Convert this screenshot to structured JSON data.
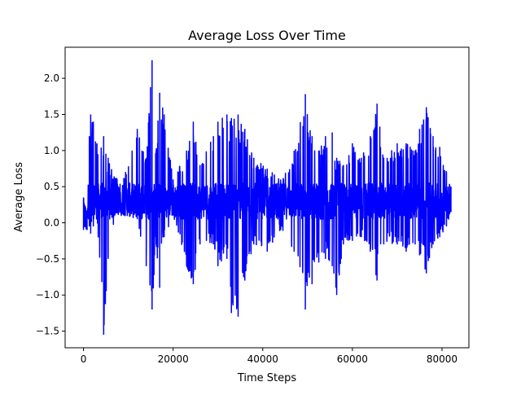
{
  "chart_data": {
    "type": "line",
    "title": "Average Loss Over Time",
    "xlabel": "Time Steps",
    "ylabel": "Average Loss",
    "xlim": [
      -4100,
      86000
    ],
    "ylim": [
      -1.73,
      2.43
    ],
    "xticks": [
      0,
      20000,
      40000,
      60000,
      80000
    ],
    "xtick_labels": [
      "0",
      "20000",
      "40000",
      "60000",
      "80000"
    ],
    "yticks": [
      -1.5,
      -1.0,
      -0.5,
      0.0,
      0.5,
      1.0,
      1.5,
      2.0
    ],
    "ytick_labels": [
      "−1.5",
      "−1.0",
      "−0.5",
      "0.0",
      "0.5",
      "1.0",
      "1.5",
      "2.0"
    ],
    "grid": false,
    "series": [
      {
        "color": "#0000ff",
        "x_range": [
          0,
          82000
        ],
        "baseline": 0.3,
        "envelope_points": [
          {
            "x": 0,
            "min": -0.1,
            "max": 0.35
          },
          {
            "x": 800,
            "min": -0.1,
            "max": 0.15
          },
          {
            "x": 1300,
            "min": -0.05,
            "max": 1.2
          },
          {
            "x": 1600,
            "min": -0.15,
            "max": 1.5
          },
          {
            "x": 2200,
            "min": -0.05,
            "max": 1.4
          },
          {
            "x": 3000,
            "min": 0.05,
            "max": 1.1
          },
          {
            "x": 4500,
            "min": -1.55,
            "max": 1.2
          },
          {
            "x": 5500,
            "min": -0.5,
            "max": 0.9
          },
          {
            "x": 7000,
            "min": 0.1,
            "max": 0.62
          },
          {
            "x": 9000,
            "min": 0.1,
            "max": 0.62
          },
          {
            "x": 12000,
            "min": 0.05,
            "max": 1.3
          },
          {
            "x": 14000,
            "min": -0.6,
            "max": 0.9
          },
          {
            "x": 15300,
            "min": -1.2,
            "max": 2.25
          },
          {
            "x": 16200,
            "min": -0.3,
            "max": 1.0
          },
          {
            "x": 17000,
            "min": -0.9,
            "max": 1.8
          },
          {
            "x": 18000,
            "min": -0.2,
            "max": 1.5
          },
          {
            "x": 20000,
            "min": 0.1,
            "max": 0.6
          },
          {
            "x": 23000,
            "min": -0.6,
            "max": 1.0
          },
          {
            "x": 24500,
            "min": -0.85,
            "max": 1.4
          },
          {
            "x": 26000,
            "min": -0.3,
            "max": 0.8
          },
          {
            "x": 29000,
            "min": -0.3,
            "max": 1.2
          },
          {
            "x": 30000,
            "min": -0.6,
            "max": 1.4
          },
          {
            "x": 32000,
            "min": -0.5,
            "max": 1.5
          },
          {
            "x": 33000,
            "min": -1.25,
            "max": 1.45
          },
          {
            "x": 34500,
            "min": -1.3,
            "max": 1.5
          },
          {
            "x": 36000,
            "min": -0.8,
            "max": 1.3
          },
          {
            "x": 38000,
            "min": -0.3,
            "max": 0.9
          },
          {
            "x": 41000,
            "min": -0.4,
            "max": 0.75
          },
          {
            "x": 44000,
            "min": -0.1,
            "max": 0.6
          },
          {
            "x": 47000,
            "min": -0.4,
            "max": 1.0
          },
          {
            "x": 49500,
            "min": -1.2,
            "max": 1.78
          },
          {
            "x": 51000,
            "min": -0.85,
            "max": 1.2
          },
          {
            "x": 52500,
            "min": -0.55,
            "max": 1.0
          },
          {
            "x": 54000,
            "min": -0.5,
            "max": 1.2
          },
          {
            "x": 55500,
            "min": -0.6,
            "max": 1.25
          },
          {
            "x": 56500,
            "min": -1.0,
            "max": 0.9
          },
          {
            "x": 58000,
            "min": -0.3,
            "max": 0.8
          },
          {
            "x": 60000,
            "min": -0.25,
            "max": 1.1
          },
          {
            "x": 62000,
            "min": -0.2,
            "max": 0.9
          },
          {
            "x": 64000,
            "min": -0.4,
            "max": 1.2
          },
          {
            "x": 65500,
            "min": -0.8,
            "max": 1.65
          },
          {
            "x": 67000,
            "min": -0.3,
            "max": 0.9
          },
          {
            "x": 70000,
            "min": -0.3,
            "max": 1.1
          },
          {
            "x": 72000,
            "min": -0.4,
            "max": 1.1
          },
          {
            "x": 74000,
            "min": -0.3,
            "max": 1.0
          },
          {
            "x": 75000,
            "min": -0.45,
            "max": 1.3
          },
          {
            "x": 76500,
            "min": -0.7,
            "max": 1.6
          },
          {
            "x": 78000,
            "min": -0.3,
            "max": 1.2
          },
          {
            "x": 79500,
            "min": -0.2,
            "max": 1.05
          },
          {
            "x": 81000,
            "min": -0.05,
            "max": 0.7
          },
          {
            "x": 82000,
            "min": 0.15,
            "max": 0.5
          }
        ]
      }
    ]
  }
}
